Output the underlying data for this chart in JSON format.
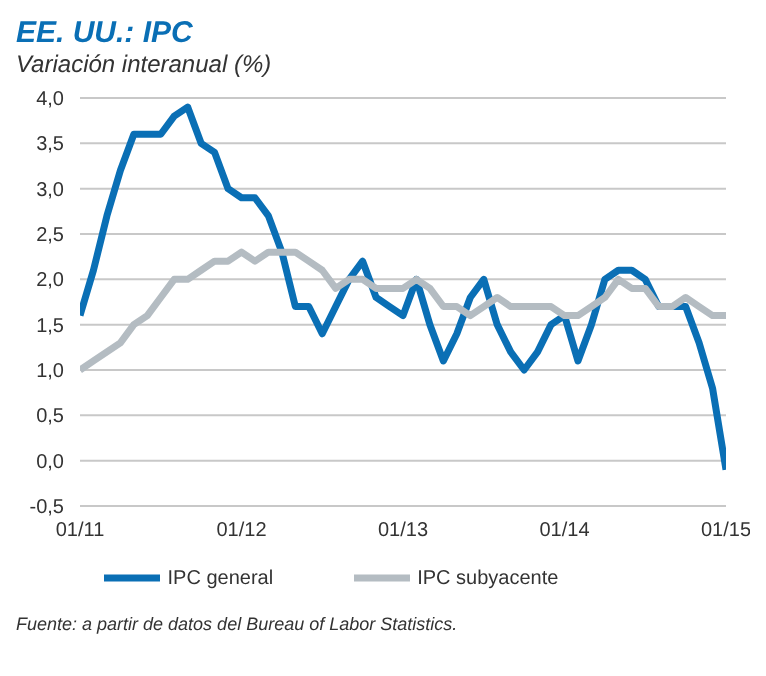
{
  "chart_data": {
    "type": "line",
    "title": "EE. UU.: IPC",
    "subtitle": "Variación interanual (%)",
    "x": [
      "2011-01",
      "2011-02",
      "2011-03",
      "2011-04",
      "2011-05",
      "2011-06",
      "2011-07",
      "2011-08",
      "2011-09",
      "2011-10",
      "2011-11",
      "2011-12",
      "2012-01",
      "2012-02",
      "2012-03",
      "2012-04",
      "2012-05",
      "2012-06",
      "2012-07",
      "2012-08",
      "2012-09",
      "2012-10",
      "2012-11",
      "2012-12",
      "2013-01",
      "2013-02",
      "2013-03",
      "2013-04",
      "2013-05",
      "2013-06",
      "2013-07",
      "2013-08",
      "2013-09",
      "2013-10",
      "2013-11",
      "2013-12",
      "2014-01",
      "2014-02",
      "2014-03",
      "2014-04",
      "2014-05",
      "2014-06",
      "2014-07",
      "2014-08",
      "2014-09",
      "2014-10",
      "2014-11",
      "2014-12",
      "2015-01"
    ],
    "series": [
      {
        "name": "IPC general",
        "color": "#0a6fb5",
        "values": [
          1.6,
          2.1,
          2.7,
          3.2,
          3.6,
          3.6,
          3.6,
          3.8,
          3.9,
          3.5,
          3.4,
          3.0,
          2.9,
          2.9,
          2.7,
          2.3,
          1.7,
          1.7,
          1.4,
          1.7,
          2.0,
          2.2,
          1.8,
          1.7,
          1.6,
          2.0,
          1.5,
          1.1,
          1.4,
          1.8,
          2.0,
          1.5,
          1.2,
          1.0,
          1.2,
          1.5,
          1.6,
          1.1,
          1.5,
          2.0,
          2.1,
          2.1,
          2.0,
          1.7,
          1.7,
          1.7,
          1.3,
          0.8,
          -0.1
        ]
      },
      {
        "name": "IPC subyacente",
        "color": "#b4bcc2",
        "values": [
          1.0,
          1.1,
          1.2,
          1.3,
          1.5,
          1.6,
          1.8,
          2.0,
          2.0,
          2.1,
          2.2,
          2.2,
          2.3,
          2.2,
          2.3,
          2.3,
          2.3,
          2.2,
          2.1,
          1.9,
          2.0,
          2.0,
          1.9,
          1.9,
          1.9,
          2.0,
          1.9,
          1.7,
          1.7,
          1.6,
          1.7,
          1.8,
          1.7,
          1.7,
          1.7,
          1.7,
          1.6,
          1.6,
          1.7,
          1.8,
          2.0,
          1.9,
          1.9,
          1.7,
          1.7,
          1.8,
          1.7,
          1.6,
          1.6
        ]
      }
    ],
    "xlim": [
      "2011-01",
      "2015-01"
    ],
    "xticks": [
      {
        "value": "2011-01",
        "label": "01/11"
      },
      {
        "value": "2012-01",
        "label": "01/12"
      },
      {
        "value": "2013-01",
        "label": "01/13"
      },
      {
        "value": "2014-01",
        "label": "01/14"
      },
      {
        "value": "2015-01",
        "label": "01/15"
      }
    ],
    "ylim": [
      -0.5,
      4.0
    ],
    "yticks": [
      {
        "value": -0.5,
        "label": "-0,5"
      },
      {
        "value": 0,
        "label": "0,0"
      },
      {
        "value": 0.5,
        "label": "0,5"
      },
      {
        "value": 1,
        "label": "1,0"
      },
      {
        "value": 1.5,
        "label": "1,5"
      },
      {
        "value": 2,
        "label": "2,0"
      },
      {
        "value": 2.5,
        "label": "2,5"
      },
      {
        "value": 3,
        "label": "3,0"
      },
      {
        "value": 3.5,
        "label": "3,5"
      },
      {
        "value": 4,
        "label": "4,0"
      }
    ],
    "grid": "y",
    "legend": "bottom",
    "marker": "none",
    "line_style": "solid",
    "annotations": [
      "Fuente: a partir de datos del Bureau of Labor Statistics."
    ]
  }
}
